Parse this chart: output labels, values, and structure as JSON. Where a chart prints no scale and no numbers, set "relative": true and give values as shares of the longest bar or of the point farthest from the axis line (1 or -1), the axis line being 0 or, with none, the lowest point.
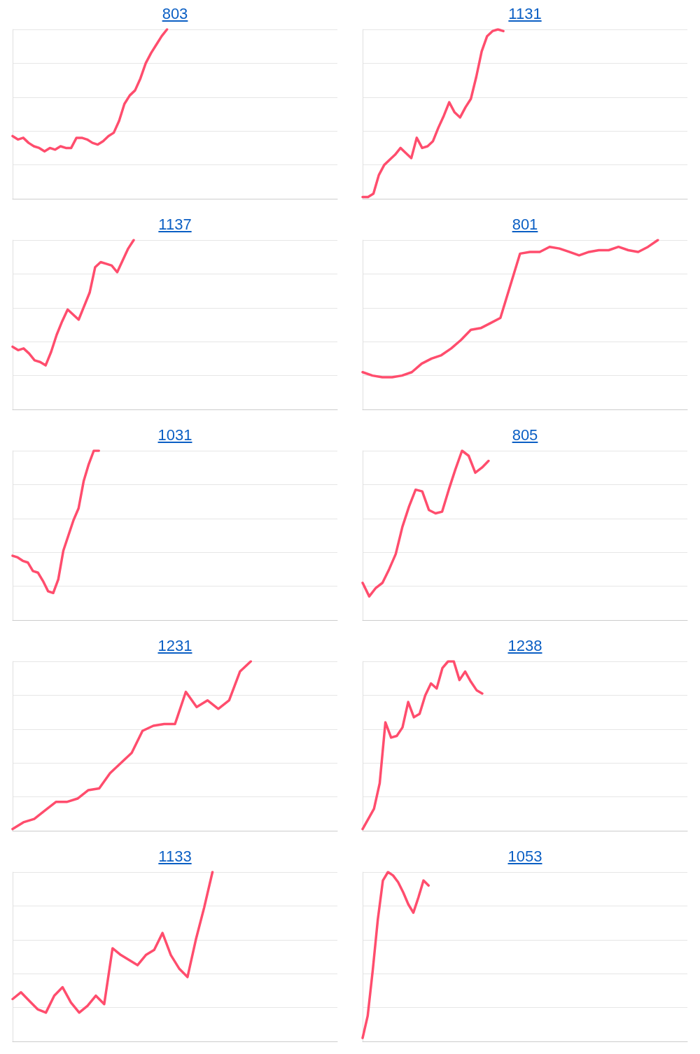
{
  "chart_data": [
    {
      "type": "line",
      "title": "803",
      "relative": true,
      "grid": "y",
      "categories": [
        null,
        null,
        null,
        null,
        null,
        null,
        null,
        null,
        null,
        null,
        null,
        null,
        null,
        null,
        null,
        null,
        null,
        null,
        null,
        null,
        null,
        null,
        null,
        null,
        null,
        null,
        null,
        null,
        null,
        null,
        null,
        null,
        null,
        null,
        null,
        null,
        null,
        null,
        null,
        null,
        null,
        null,
        null,
        null,
        null,
        null,
        null,
        null,
        null,
        null,
        null,
        null,
        null,
        null,
        null,
        null,
        null,
        null,
        null,
        null,
        null,
        null
      ],
      "series": [
        {
          "color": "#ff4d6d",
          "values": [
            0.37,
            0.35,
            0.36,
            0.33,
            0.31,
            0.3,
            0.28,
            0.3,
            0.29,
            0.31,
            0.3,
            0.3,
            0.36,
            0.36,
            0.35,
            0.33,
            0.32,
            0.34,
            0.37,
            0.39,
            0.46,
            0.56,
            0.61,
            0.64,
            0.71,
            0.8,
            0.86,
            0.91,
            0.96,
            1,
            null,
            null,
            null,
            null,
            null,
            null,
            null,
            null,
            null,
            null,
            null,
            null,
            null,
            null,
            null,
            null,
            null,
            null,
            null,
            null,
            null,
            null,
            null,
            null,
            null,
            null,
            null,
            null,
            null,
            null,
            null,
            null
          ]
        }
      ]
    },
    {
      "type": "line",
      "title": "1131",
      "relative": true,
      "grid": "y",
      "categories": [
        null,
        null,
        null,
        null,
        null,
        null,
        null,
        null,
        null,
        null,
        null,
        null,
        null,
        null,
        null,
        null,
        null,
        null,
        null,
        null,
        null,
        null,
        null,
        null,
        null,
        null,
        null,
        null,
        null,
        null,
        null,
        null,
        null,
        null,
        null,
        null,
        null,
        null,
        null,
        null,
        null,
        null,
        null,
        null,
        null,
        null,
        null,
        null,
        null,
        null,
        null,
        null,
        null,
        null,
        null,
        null,
        null,
        null,
        null,
        null,
        null
      ],
      "series": [
        {
          "color": "#ff4d6d",
          "values": [
            0.01,
            0.01,
            0.03,
            0.14,
            0.2,
            0.23,
            0.26,
            0.3,
            0.27,
            0.24,
            0.36,
            0.3,
            0.31,
            0.34,
            0.42,
            0.49,
            0.57,
            0.51,
            0.48,
            0.54,
            0.59,
            0.72,
            0.87,
            0.96,
            0.99,
            1,
            0.99,
            null,
            null,
            null,
            null,
            null,
            null,
            null,
            null,
            null,
            null,
            null,
            null,
            null,
            null,
            null,
            null,
            null,
            null,
            null,
            null,
            null,
            null,
            null,
            null,
            null,
            null,
            null,
            null,
            null,
            null,
            null,
            null,
            null,
            null
          ]
        }
      ]
    },
    {
      "type": "line",
      "title": "1137",
      "relative": true,
      "grid": "y",
      "categories": [
        null,
        null,
        null,
        null,
        null,
        null,
        null,
        null,
        null,
        null,
        null,
        null,
        null,
        null,
        null,
        null,
        null,
        null,
        null,
        null,
        null,
        null,
        null,
        null,
        null,
        null,
        null,
        null,
        null,
        null,
        null,
        null,
        null,
        null,
        null,
        null,
        null,
        null,
        null,
        null,
        null,
        null,
        null,
        null,
        null,
        null,
        null,
        null,
        null,
        null,
        null,
        null,
        null,
        null,
        null,
        null,
        null,
        null,
        null,
        null
      ],
      "series": [
        {
          "color": "#ff4d6d",
          "values": [
            0.37,
            0.35,
            0.36,
            0.33,
            0.29,
            0.28,
            0.26,
            0.34,
            0.44,
            0.52,
            0.59,
            0.56,
            0.53,
            0.61,
            0.69,
            0.84,
            0.87,
            0.86,
            0.85,
            0.81,
            0.88,
            0.95,
            1,
            null,
            null,
            null,
            null,
            null,
            null,
            null,
            null,
            null,
            null,
            null,
            null,
            null,
            null,
            null,
            null,
            null,
            null,
            null,
            null,
            null,
            null,
            null,
            null,
            null,
            null,
            null,
            null,
            null,
            null,
            null,
            null,
            null,
            null,
            null,
            null,
            null
          ]
        }
      ]
    },
    {
      "type": "line",
      "title": "801",
      "relative": true,
      "grid": "y",
      "categories": [
        null,
        null,
        null,
        null,
        null,
        null,
        null,
        null,
        null,
        null,
        null,
        null,
        null,
        null,
        null,
        null,
        null,
        null,
        null,
        null,
        null,
        null,
        null,
        null,
        null,
        null,
        null,
        null,
        null,
        null,
        null,
        null,
        null,
        null
      ],
      "series": [
        {
          "color": "#ff4d6d",
          "values": [
            0.22,
            0.2,
            0.19,
            0.19,
            0.2,
            0.22,
            0.27,
            0.3,
            0.32,
            0.36,
            0.41,
            0.47,
            0.48,
            0.51,
            0.54,
            0.73,
            0.92,
            0.93,
            0.93,
            0.96,
            0.95,
            0.93,
            0.91,
            0.93,
            0.94,
            0.94,
            0.96,
            0.94,
            0.93,
            0.96,
            1,
            null,
            null,
            null
          ]
        }
      ]
    },
    {
      "type": "line",
      "title": "1031",
      "relative": true,
      "grid": "y",
      "categories": [
        null,
        null,
        null,
        null,
        null,
        null,
        null,
        null,
        null,
        null,
        null,
        null,
        null,
        null,
        null,
        null,
        null,
        null,
        null,
        null,
        null,
        null,
        null,
        null,
        null,
        null,
        null,
        null,
        null,
        null,
        null,
        null,
        null,
        null,
        null,
        null,
        null,
        null,
        null,
        null,
        null,
        null,
        null,
        null,
        null,
        null,
        null,
        null,
        null,
        null,
        null,
        null,
        null,
        null,
        null,
        null,
        null,
        null,
        null,
        null,
        null,
        null,
        null,
        null,
        null
      ],
      "series": [
        {
          "color": "#ff4d6d",
          "values": [
            0.38,
            0.37,
            0.35,
            0.34,
            0.29,
            0.28,
            0.23,
            0.17,
            0.16,
            0.24,
            0.41,
            0.5,
            0.59,
            0.66,
            0.82,
            0.92,
            1,
            1,
            null,
            null,
            null,
            null,
            null,
            null,
            null,
            null,
            null,
            null,
            null,
            null,
            null,
            null,
            null,
            null,
            null,
            null,
            null,
            null,
            null,
            null,
            null,
            null,
            null,
            null,
            null,
            null,
            null,
            null,
            null,
            null,
            null,
            null,
            null,
            null,
            null,
            null,
            null,
            null,
            null,
            null,
            null,
            null,
            null,
            null,
            null
          ]
        }
      ]
    },
    {
      "type": "line",
      "title": "805",
      "relative": true,
      "grid": "y",
      "categories": [
        null,
        null,
        null,
        null,
        null,
        null,
        null,
        null,
        null,
        null,
        null,
        null,
        null,
        null,
        null,
        null,
        null,
        null,
        null,
        null,
        null,
        null,
        null,
        null,
        null,
        null,
        null,
        null,
        null,
        null,
        null,
        null,
        null,
        null,
        null,
        null,
        null,
        null,
        null,
        null,
        null,
        null,
        null,
        null,
        null,
        null,
        null,
        null,
        null,
        null
      ],
      "series": [
        {
          "color": "#ff4d6d",
          "values": [
            0.22,
            0.14,
            0.19,
            0.22,
            0.3,
            0.39,
            0.55,
            0.67,
            0.77,
            0.76,
            0.65,
            0.63,
            0.64,
            0.77,
            0.89,
            1,
            0.97,
            0.87,
            0.9,
            0.94,
            null,
            null,
            null,
            null,
            null,
            null,
            null,
            null,
            null,
            null,
            null,
            null,
            null,
            null,
            null,
            null,
            null,
            null,
            null,
            null,
            null,
            null,
            null,
            null,
            null,
            null,
            null,
            null,
            null,
            null
          ]
        }
      ]
    },
    {
      "type": "line",
      "title": "1231",
      "relative": true,
      "grid": "y",
      "categories": [
        null,
        null,
        null,
        null,
        null,
        null,
        null,
        null,
        null,
        null,
        null,
        null,
        null,
        null,
        null,
        null,
        null,
        null,
        null,
        null,
        null,
        null,
        null,
        null,
        null,
        null,
        null,
        null,
        null,
        null,
        null
      ],
      "series": [
        {
          "color": "#ff4d6d",
          "values": [
            0.01,
            0.05,
            0.07,
            0.12,
            0.17,
            0.17,
            0.19,
            0.24,
            0.25,
            0.34,
            0.4,
            0.46,
            0.59,
            0.62,
            0.63,
            0.63,
            0.82,
            0.73,
            0.77,
            0.72,
            0.77,
            0.94,
            1,
            null,
            null,
            null,
            null,
            null,
            null,
            null,
            null
          ]
        }
      ]
    },
    {
      "type": "line",
      "title": "1238",
      "relative": true,
      "grid": "y",
      "categories": [
        null,
        null,
        null,
        null,
        null,
        null,
        null,
        null,
        null,
        null,
        null,
        null,
        null,
        null,
        null,
        null,
        null,
        null,
        null,
        null,
        null,
        null,
        null,
        null,
        null,
        null,
        null,
        null,
        null,
        null,
        null,
        null,
        null,
        null,
        null,
        null,
        null,
        null,
        null,
        null,
        null,
        null,
        null,
        null,
        null,
        null,
        null,
        null,
        null,
        null,
        null,
        null,
        null,
        null,
        null,
        null,
        null,
        null
      ],
      "series": [
        {
          "color": "#ff4d6d",
          "values": [
            0.01,
            0.07,
            0.13,
            0.28,
            0.64,
            0.55,
            0.56,
            0.61,
            0.76,
            0.67,
            0.69,
            0.8,
            0.87,
            0.84,
            0.96,
            1,
            1,
            0.89,
            0.94,
            0.88,
            0.83,
            0.81,
            null,
            null,
            null,
            null,
            null,
            null,
            null,
            null,
            null,
            null,
            null,
            null,
            null,
            null,
            null,
            null,
            null,
            null,
            null,
            null,
            null,
            null,
            null,
            null,
            null,
            null,
            null,
            null,
            null,
            null,
            null,
            null,
            null,
            null,
            null,
            null
          ]
        }
      ]
    },
    {
      "type": "line",
      "title": "1133",
      "relative": true,
      "grid": "y",
      "categories": [
        null,
        null,
        null,
        null,
        null,
        null,
        null,
        null,
        null,
        null,
        null,
        null,
        null,
        null,
        null,
        null,
        null,
        null,
        null,
        null,
        null,
        null,
        null,
        null,
        null,
        null,
        null,
        null,
        null,
        null,
        null,
        null,
        null,
        null,
        null,
        null,
        null,
        null,
        null,
        null
      ],
      "series": [
        {
          "color": "#ff4d6d",
          "values": [
            0.25,
            0.29,
            0.24,
            0.19,
            0.17,
            0.27,
            0.32,
            0.23,
            0.17,
            0.21,
            0.27,
            0.22,
            0.55,
            0.51,
            0.48,
            0.45,
            0.51,
            0.54,
            0.64,
            0.51,
            0.43,
            0.38,
            0.6,
            0.79,
            1,
            null,
            null,
            null,
            null,
            null,
            null,
            null,
            null,
            null,
            null,
            null,
            null,
            null,
            null,
            null
          ]
        }
      ]
    },
    {
      "type": "line",
      "title": "1053",
      "relative": true,
      "grid": "y",
      "categories": [
        null,
        null,
        null,
        null,
        null,
        null,
        null,
        null,
        null,
        null,
        null,
        null,
        null,
        null,
        null,
        null,
        null,
        null,
        null,
        null,
        null,
        null,
        null,
        null,
        null,
        null,
        null,
        null,
        null,
        null,
        null,
        null,
        null,
        null,
        null,
        null,
        null,
        null,
        null,
        null,
        null,
        null,
        null,
        null,
        null,
        null,
        null,
        null,
        null,
        null,
        null,
        null,
        null,
        null,
        null,
        null,
        null,
        null,
        null,
        null,
        null,
        null,
        null,
        null,
        null
      ],
      "series": [
        {
          "color": "#ff4d6d",
          "values": [
            0.02,
            0.15,
            0.42,
            0.72,
            0.95,
            1,
            0.98,
            0.94,
            0.88,
            0.81,
            0.76,
            0.85,
            0.95,
            0.92,
            null,
            null,
            null,
            null,
            null,
            null,
            null,
            null,
            null,
            null,
            null,
            null,
            null,
            null,
            null,
            null,
            null,
            null,
            null,
            null,
            null,
            null,
            null,
            null,
            null,
            null,
            null,
            null,
            null,
            null,
            null,
            null,
            null,
            null,
            null,
            null,
            null,
            null,
            null,
            null,
            null,
            null,
            null,
            null,
            null,
            null,
            null,
            null,
            null,
            null,
            null
          ]
        }
      ]
    }
  ]
}
